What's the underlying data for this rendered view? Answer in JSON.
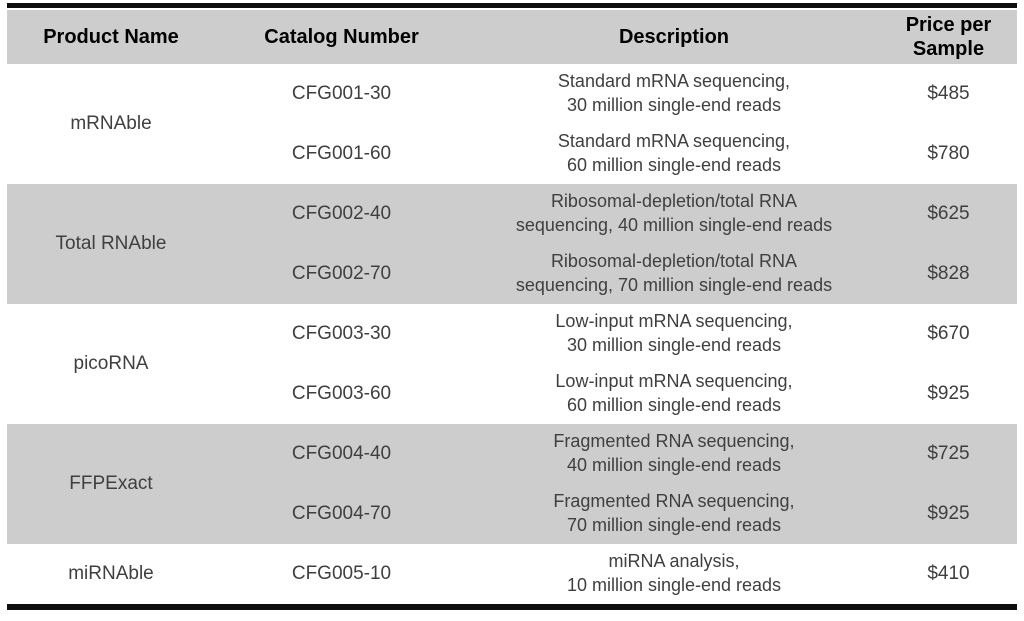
{
  "table": {
    "columns": [
      "Product Name",
      "Catalog Number",
      "Description",
      "Price per Sample"
    ],
    "groups": [
      {
        "product": "mRNAble",
        "shaded": false,
        "rows": [
          {
            "catalog": "CFG001-30",
            "description_line1": "Standard mRNA sequencing,",
            "description_line2": "30 million single-end reads",
            "price": "$485"
          },
          {
            "catalog": "CFG001-60",
            "description_line1": "Standard mRNA sequencing,",
            "description_line2": "60 million single-end reads",
            "price": "$780"
          }
        ]
      },
      {
        "product": "Total RNAble",
        "shaded": true,
        "rows": [
          {
            "catalog": "CFG002-40",
            "description_line1": "Ribosomal-depletion/total RNA",
            "description_line2": "sequencing, 40 million single-end reads",
            "price": "$625"
          },
          {
            "catalog": "CFG002-70",
            "description_line1": "Ribosomal-depletion/total RNA",
            "description_line2": "sequencing, 70 million single-end reads",
            "price": "$828"
          }
        ]
      },
      {
        "product": "picoRNA",
        "shaded": false,
        "rows": [
          {
            "catalog": "CFG003-30",
            "description_line1": "Low-input mRNA sequencing,",
            "description_line2": "30 million single-end reads",
            "price": "$670"
          },
          {
            "catalog": "CFG003-60",
            "description_line1": "Low-input mRNA sequencing,",
            "description_line2": "60 million single-end reads",
            "price": "$925"
          }
        ]
      },
      {
        "product": "FFPExact",
        "shaded": true,
        "rows": [
          {
            "catalog": "CFG004-40",
            "description_line1": "Fragmented RNA sequencing,",
            "description_line2": "40 million single-end reads",
            "price": "$725"
          },
          {
            "catalog": "CFG004-70",
            "description_line1": "Fragmented RNA sequencing,",
            "description_line2": "70 million single-end reads",
            "price": "$925"
          }
        ]
      },
      {
        "product": "miRNAble",
        "shaded": false,
        "rows": [
          {
            "catalog": "CFG005-10",
            "description_line1": "miRNA analysis,",
            "description_line2": "10 million single-end reads",
            "price": "$410"
          }
        ]
      }
    ]
  },
  "colors": {
    "band_gray": "#cdcdcd",
    "body_text": "#3f3f3f",
    "header_text": "#000000",
    "rule_black": "#0e0e0e"
  }
}
